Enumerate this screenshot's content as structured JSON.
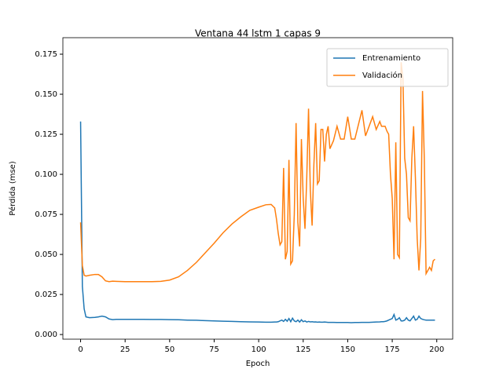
{
  "chart_data": {
    "type": "line",
    "title": "Ventana 44 lstm 1 capas 9",
    "x_label": "Epoch",
    "y_label": "Pérdida (mse)",
    "x": [
      0,
      1,
      2,
      3,
      5,
      8,
      10,
      12,
      14,
      16,
      18,
      20,
      25,
      30,
      35,
      40,
      45,
      50,
      55,
      60,
      65,
      70,
      75,
      80,
      85,
      90,
      95,
      100,
      104,
      107,
      109,
      110,
      111,
      112,
      113,
      114,
      115,
      116,
      117,
      118,
      119,
      120,
      121,
      122,
      123,
      124,
      125,
      126,
      127,
      128,
      129,
      130,
      131,
      132,
      133,
      134,
      135,
      136,
      137,
      138,
      139,
      140,
      142,
      144,
      146,
      148,
      150,
      152,
      154,
      156,
      158,
      160,
      162,
      164,
      166,
      168,
      169,
      170,
      171,
      172,
      173,
      174,
      175,
      176,
      177,
      178,
      179,
      180,
      181,
      182,
      183,
      184,
      185,
      186,
      187,
      188,
      189,
      190,
      191,
      192,
      193,
      194,
      195,
      196,
      197,
      198,
      199
    ],
    "series": [
      {
        "name": "Entrenamiento",
        "color": "#1f77b4",
        "values": [
          0.133,
          0.03,
          0.016,
          0.011,
          0.0105,
          0.0107,
          0.011,
          0.0115,
          0.011,
          0.0097,
          0.0093,
          0.0095,
          0.0095,
          0.0095,
          0.0095,
          0.0094,
          0.0094,
          0.0093,
          0.0092,
          0.009,
          0.0089,
          0.0087,
          0.0085,
          0.0083,
          0.0082,
          0.008,
          0.0079,
          0.0078,
          0.0077,
          0.0077,
          0.0078,
          0.0078,
          0.008,
          0.0085,
          0.009,
          0.0082,
          0.0095,
          0.0083,
          0.01,
          0.008,
          0.0102,
          0.0085,
          0.008,
          0.009,
          0.0078,
          0.0092,
          0.008,
          0.0085,
          0.0078,
          0.0082,
          0.0079,
          0.008,
          0.0078,
          0.0079,
          0.0077,
          0.0078,
          0.0077,
          0.0077,
          0.0078,
          0.0077,
          0.0076,
          0.0076,
          0.0076,
          0.0075,
          0.0075,
          0.0075,
          0.0075,
          0.0074,
          0.0075,
          0.0075,
          0.0076,
          0.0076,
          0.0076,
          0.0077,
          0.0078,
          0.0079,
          0.008,
          0.008,
          0.0082,
          0.0085,
          0.009,
          0.0095,
          0.01,
          0.0125,
          0.009,
          0.0095,
          0.0105,
          0.0085,
          0.0085,
          0.009,
          0.0105,
          0.009,
          0.0085,
          0.01,
          0.0115,
          0.009,
          0.0095,
          0.0115,
          0.01,
          0.0095,
          0.0092,
          0.009,
          0.009,
          0.009,
          0.009,
          0.009,
          0.009
        ]
      },
      {
        "name": "Validación",
        "color": "#ff7f0e",
        "values": [
          0.07,
          0.043,
          0.037,
          0.0365,
          0.037,
          0.0375,
          0.0375,
          0.036,
          0.0335,
          0.033,
          0.0333,
          0.0332,
          0.033,
          0.033,
          0.033,
          0.033,
          0.0332,
          0.034,
          0.036,
          0.04,
          0.045,
          0.051,
          0.057,
          0.0635,
          0.069,
          0.0735,
          0.0775,
          0.0795,
          0.081,
          0.0812,
          0.079,
          0.072,
          0.063,
          0.056,
          0.058,
          0.104,
          0.047,
          0.052,
          0.109,
          0.044,
          0.046,
          0.075,
          0.132,
          0.07,
          0.055,
          0.122,
          0.085,
          0.066,
          0.098,
          0.141,
          0.09,
          0.068,
          0.106,
          0.132,
          0.094,
          0.096,
          0.128,
          0.128,
          0.108,
          0.125,
          0.13,
          0.116,
          0.121,
          0.13,
          0.122,
          0.122,
          0.136,
          0.122,
          0.122,
          0.131,
          0.14,
          0.124,
          0.13,
          0.136,
          0.128,
          0.133,
          0.13,
          0.13,
          0.13,
          0.127,
          0.125,
          0.1,
          0.085,
          0.047,
          0.12,
          0.05,
          0.048,
          0.17,
          0.16,
          0.11,
          0.1,
          0.073,
          0.071,
          0.11,
          0.13,
          0.098,
          0.06,
          0.04,
          0.06,
          0.152,
          0.11,
          0.038,
          0.04,
          0.042,
          0.04,
          0.046,
          0.047
        ]
      }
    ],
    "xlim": [
      -9.95,
      208.95
    ],
    "ylim": [
      -0.0029,
      0.1853
    ],
    "xticks": [
      0,
      25,
      50,
      75,
      100,
      125,
      150,
      175,
      200
    ],
    "yticks": [
      {
        "value": 0,
        "label": "0.000"
      },
      {
        "value": 0.025,
        "label": "0.025"
      },
      {
        "value": 0.05,
        "label": "0.050"
      },
      {
        "value": 0.075,
        "label": "0.075"
      },
      {
        "value": 0.1,
        "label": "0.100"
      },
      {
        "value": 0.125,
        "label": "0.125"
      },
      {
        "value": 0.15,
        "label": "0.150"
      },
      {
        "value": 0.175,
        "label": "0.175"
      }
    ],
    "legend": "upper right"
  }
}
